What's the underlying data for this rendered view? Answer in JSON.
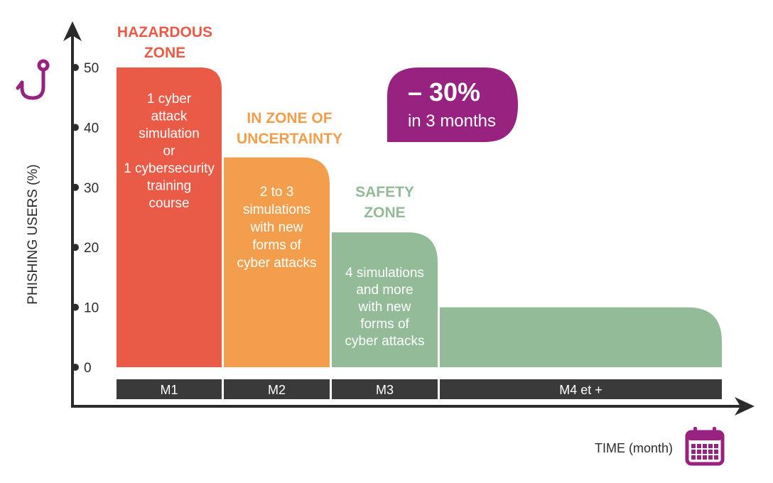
{
  "chart_data": {
    "type": "bar",
    "ylabel": "PHISHING USERS (%)",
    "xlabel": "TIME (month)",
    "yticks": [
      0,
      10,
      20,
      30,
      40,
      50
    ],
    "ylim": [
      0,
      50
    ],
    "grid": false,
    "categories": [
      "M1",
      "M2",
      "M3",
      "M4 et +"
    ],
    "values": [
      50,
      35,
      22.5,
      10
    ],
    "colors": [
      "#e95b47",
      "#f29e4c",
      "#93bb98",
      "#93bb98"
    ],
    "bar_texts": [
      "1 cyber\nattack\nsimulation\nor\n1 cybersecurity\ntraining\ncourse",
      "2 to 3\nsimulations\nwith new\nforms of\ncyber attacks",
      "4 simulations\nand more\nwith new\nforms of\ncyber attacks",
      ""
    ],
    "zone_labels": [
      {
        "text": "HAZARDOUS\nZONE",
        "color": "#e95b47"
      },
      {
        "text": "IN ZONE OF\nUNCERTAINTY",
        "color": "#f29e4c"
      },
      {
        "text": "SAFETY\nZONE",
        "color": "#93bb98"
      }
    ],
    "callout": {
      "value": "– 30%",
      "text": "in 3 months",
      "color": "#97227f"
    }
  },
  "icons": {
    "y_axis_icon": "fishing-hook-icon",
    "x_axis_icon": "calendar-icon",
    "color": "#97227f"
  },
  "colors": {
    "axis": "#2b2b2b",
    "month_bar": "#3a3a3a",
    "month_text": "#ffffff"
  }
}
